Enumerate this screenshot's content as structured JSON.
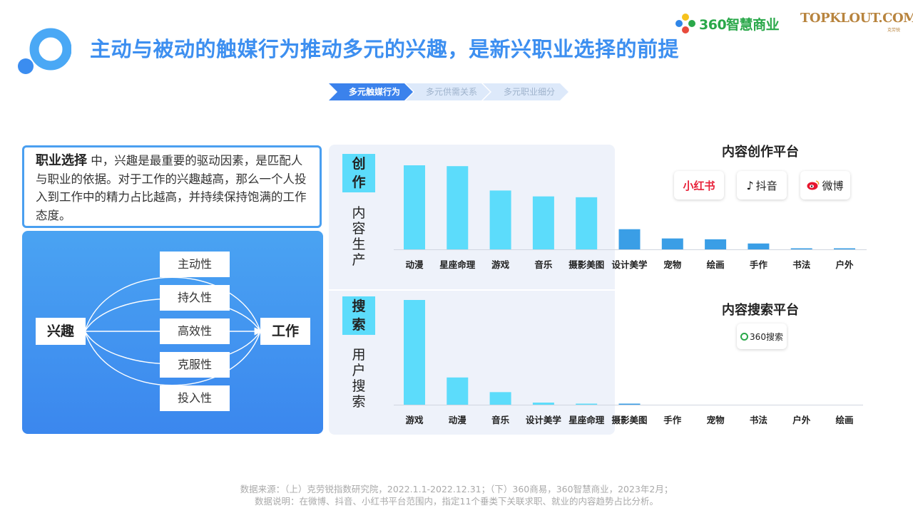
{
  "header": {
    "title": "主动与被动的触媒行为推动多元的兴趣，是新兴职业选择的前提",
    "brand_360": "360智慧商业",
    "brand_topklout": "TOPKLOUT.COM",
    "brand_topklout_sub": "克劳锐"
  },
  "steps": [
    "多元触媒行为",
    "多元供需关系",
    "多元职业细分"
  ],
  "info": {
    "keyword": "职业选择",
    "text": " 中，兴趣是最重要的驱动因素，是匹配人与职业的依据。对于工作的兴趣越高，那么一个人投入到工作中的精力占比越高，并持续保持饱满的工作态度。"
  },
  "diagram": {
    "source": "兴趣",
    "target": "工作",
    "traits": [
      "主动性",
      "持久性",
      "高效性",
      "克服性",
      "投入性"
    ]
  },
  "panels": {
    "create_tag": [
      "创",
      "作"
    ],
    "create_label": [
      "内",
      "容",
      "生",
      "产"
    ],
    "search_tag": [
      "搜",
      "索"
    ],
    "search_label": [
      "用",
      "户",
      "搜",
      "索"
    ]
  },
  "platforms": {
    "create_title": "内容创作平台",
    "create_logos": [
      "小红书",
      "抖音",
      "微博"
    ],
    "search_title": "内容搜索平台",
    "search_logos": [
      "360搜索"
    ]
  },
  "chart_data": [
    {
      "type": "bar",
      "categories": [
        "动漫",
        "星座命理",
        "游戏",
        "音乐",
        "摄影美图",
        "设计美学",
        "宠物",
        "绘画",
        "手作",
        "书法",
        "户外"
      ],
      "values": [
        100,
        99,
        70,
        63,
        62,
        24,
        13,
        12,
        7,
        1,
        1
      ],
      "colors": [
        "#5cdcfb",
        "#5cdcfb",
        "#5cdcfb",
        "#5cdcfb",
        "#5cdcfb",
        "#3a9ee6",
        "#3a9ee6",
        "#3a9ee6",
        "#3a9ee6",
        "#3a9ee6",
        "#3a9ee6"
      ],
      "title": "",
      "ylim": [
        0,
        100
      ]
    },
    {
      "type": "bar",
      "categories": [
        "游戏",
        "动漫",
        "音乐",
        "设计美学",
        "星座命理",
        "摄影美图",
        "手作",
        "宠物",
        "书法",
        "户外",
        "绘画"
      ],
      "values": [
        100,
        26,
        12,
        2,
        1,
        1,
        0,
        0,
        0,
        0,
        0
      ],
      "colors": [
        "#5cdcfb",
        "#5cdcfb",
        "#5cdcfb",
        "#5cdcfb",
        "#5cdcfb",
        "#3a9ee6",
        "#3a9ee6",
        "#3a9ee6",
        "#3a9ee6",
        "#3a9ee6",
        "#3a9ee6"
      ],
      "title": "",
      "ylim": [
        0,
        100
      ]
    }
  ],
  "footer": {
    "line1": "数据来源：（上）克劳锐指数研究院，2022.1.1-2022.12.31；（下）360商易，360智慧商业，2023年2月；",
    "line2": "数据说明：在微博、抖音、小红书平台范围内，指定11个垂类下关联求职、就业的内容趋势占比分析。"
  }
}
